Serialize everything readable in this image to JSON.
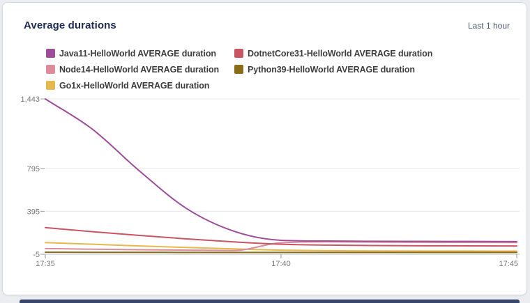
{
  "card": {
    "title": "Average durations",
    "time_range": "Last 1 hour"
  },
  "chart_data": {
    "type": "line",
    "title": "Average durations",
    "time_range": "Last 1 hour",
    "x": [
      "17:35",
      "17:36",
      "17:37",
      "17:38",
      "17:39",
      "17:40",
      "17:41",
      "17:42",
      "17:43",
      "17:44",
      "17:45"
    ],
    "x_tick_labels": [
      "17:35",
      "17:40",
      "17:45"
    ],
    "y_ticks": [
      -5,
      395,
      795,
      1443
    ],
    "y_tick_labels": [
      "-5",
      "395",
      "795",
      "1,443"
    ],
    "ylim": [
      -5,
      1443
    ],
    "grid": "horizontal",
    "legend_position": "top",
    "series": [
      {
        "name": "Java11-HelloWorld AVERAGE duration",
        "color": "#9e4d9b",
        "values": [
          1443,
          1160,
          770,
          420,
          210,
          125,
          118,
          116,
          115,
          114,
          113
        ]
      },
      {
        "name": "DotnetCore31-HelloWorld AVERAGE duration",
        "color": "#ca5562",
        "values": [
          243,
          205,
          170,
          138,
          110,
          88,
          80,
          76,
          74,
          73,
          72
        ]
      },
      {
        "name": "Node14-HelloWorld AVERAGE duration",
        "color": "#de8c9b",
        "values": [
          48,
          42,
          37,
          33,
          30,
          102,
          110,
          108,
          106,
          105,
          104
        ]
      },
      {
        "name": "Python39-HelloWorld AVERAGE duration",
        "color": "#8a6c17",
        "values": [
          14,
          13,
          13,
          12,
          12,
          12,
          12,
          12,
          12,
          12,
          12
        ]
      },
      {
        "name": "Go1x-HelloWorld AVERAGE duration",
        "color": "#e5b94e",
        "values": [
          104,
          88,
          72,
          58,
          45,
          33,
          28,
          26,
          25,
          25,
          24
        ]
      }
    ]
  }
}
